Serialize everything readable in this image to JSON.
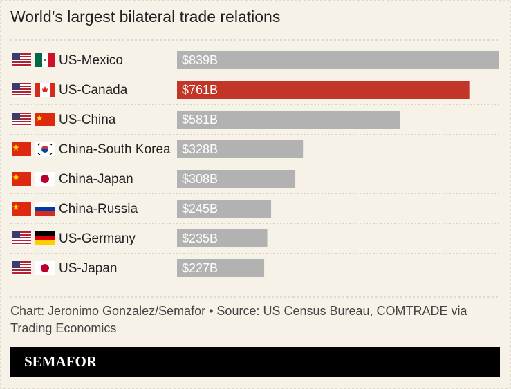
{
  "chart_data": {
    "type": "bar",
    "orientation": "horizontal",
    "title": "World’s largest bilateral trade relations",
    "categories": [
      "US-Mexico",
      "US-Canada",
      "US-China",
      "China-South Korea",
      "China-Japan",
      "China-Russia",
      "US-Germany",
      "US-Japan"
    ],
    "values": [
      839,
      761,
      581,
      328,
      308,
      245,
      235,
      227
    ],
    "value_labels": [
      "$839B",
      "$761B",
      "$581B",
      "$328B",
      "$308B",
      "$245B",
      "$235B",
      "$227B"
    ],
    "colors": [
      "#b2b2b2",
      "#c23527",
      "#b2b2b2",
      "#b2b2b2",
      "#b2b2b2",
      "#b2b2b2",
      "#b2b2b2",
      "#b2b2b2"
    ],
    "source": "Chart: Jeronimo Gonzalez/Semafor • Source: US Census Bureau, COMTRADE via Trading Economics",
    "brand": "SEMAFOR"
  }
}
